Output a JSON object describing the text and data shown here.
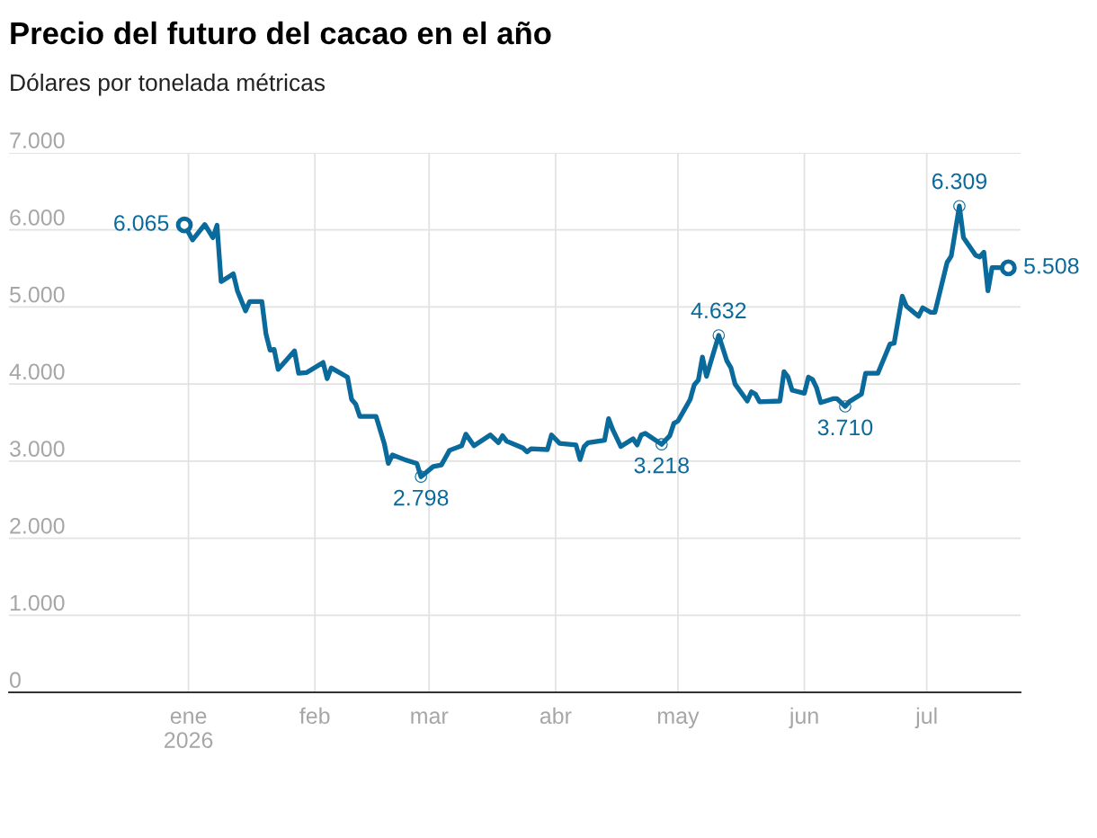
{
  "chart_data": {
    "type": "line",
    "title": "Precio del futuro del cacao en el año",
    "subtitle": "Dólares por tonelada métricas",
    "x": [
      "2025-12-31",
      "2026-01-02",
      "2026-01-05",
      "2026-01-07",
      "2026-01-08",
      "2026-01-09",
      "2026-01-12",
      "2026-01-13",
      "2026-01-15",
      "2026-01-16",
      "2026-01-19",
      "2026-01-20",
      "2026-01-21",
      "2026-01-22",
      "2026-01-23",
      "2026-01-27",
      "2026-01-28",
      "2026-01-30",
      "2026-02-03",
      "2026-02-04",
      "2026-02-05",
      "2026-02-09",
      "2026-02-10",
      "2026-02-11",
      "2026-02-12",
      "2026-02-16",
      "2026-02-18",
      "2026-02-19",
      "2026-02-20",
      "2026-02-23",
      "2026-02-26",
      "2026-02-27",
      "2026-03-02",
      "2026-03-04",
      "2026-03-06",
      "2026-03-09",
      "2026-03-10",
      "2026-03-12",
      "2026-03-16",
      "2026-03-18",
      "2026-03-19",
      "2026-03-20",
      "2026-03-24",
      "2026-03-25",
      "2026-03-26",
      "2026-03-30",
      "2026-03-31",
      "2026-04-02",
      "2026-04-06",
      "2026-04-07",
      "2026-04-08",
      "2026-04-09",
      "2026-04-13",
      "2026-04-14",
      "2026-04-15",
      "2026-04-17",
      "2026-04-20",
      "2026-04-21",
      "2026-04-22",
      "2026-04-23",
      "2026-04-27",
      "2026-04-29",
      "2026-04-30",
      "2026-05-01",
      "2026-05-04",
      "2026-05-05",
      "2026-05-06",
      "2026-05-07",
      "2026-05-08",
      "2026-05-11",
      "2026-05-13",
      "2026-05-14",
      "2026-05-15",
      "2026-05-18",
      "2026-05-19",
      "2026-05-20",
      "2026-05-21",
      "2026-05-26",
      "2026-05-27",
      "2026-05-28",
      "2026-05-29",
      "2026-06-01",
      "2026-06-02",
      "2026-06-03",
      "2026-06-04",
      "2026-06-05",
      "2026-06-08",
      "2026-06-09",
      "2026-06-11",
      "2026-06-12",
      "2026-06-15",
      "2026-06-16",
      "2026-06-19",
      "2026-06-22",
      "2026-06-23",
      "2026-06-25",
      "2026-06-26",
      "2026-06-29",
      "2026-06-30",
      "2026-07-02",
      "2026-07-03",
      "2026-07-06",
      "2026-07-07",
      "2026-07-09",
      "2026-07-10",
      "2026-07-13",
      "2026-07-14",
      "2026-07-15",
      "2026-07-16",
      "2026-07-17",
      "2026-07-18",
      "2026-07-21"
    ],
    "series": [
      {
        "color": "#0a6a9b",
        "values": [
          6065,
          5870,
          6070,
          5900,
          6060,
          5330,
          5430,
          5210,
          4950,
          5070,
          5070,
          4650,
          4440,
          4450,
          4190,
          4430,
          4140,
          4150,
          4280,
          4070,
          4210,
          4090,
          3800,
          3740,
          3580,
          3580,
          3230,
          2970,
          3080,
          3020,
          2970,
          2798,
          2930,
          2950,
          3140,
          3200,
          3350,
          3200,
          3340,
          3240,
          3330,
          3260,
          3170,
          3120,
          3160,
          3150,
          3340,
          3230,
          3210,
          3020,
          3190,
          3240,
          3270,
          3550,
          3410,
          3190,
          3290,
          3210,
          3340,
          3360,
          3218,
          3330,
          3490,
          3520,
          3800,
          3990,
          4050,
          4350,
          4100,
          4632,
          4300,
          4210,
          4000,
          3780,
          3900,
          3870,
          3770,
          3780,
          4160,
          4090,
          3920,
          3880,
          4090,
          4060,
          3950,
          3760,
          3810,
          3810,
          3710,
          3770,
          3870,
          4140,
          4140,
          4520,
          4530,
          5140,
          5010,
          4880,
          4990,
          4930,
          4930,
          5580,
          5660,
          6309,
          5900,
          5670,
          5650,
          5710,
          5210,
          5510,
          5510,
          5508
        ]
      }
    ],
    "xlim": [
      "2025-11-18",
      "2026-07-24"
    ],
    "xticks": [
      {
        "value": "2026-01-01",
        "label": "ene\n2026"
      },
      {
        "value": "2026-02-01",
        "label": "feb"
      },
      {
        "value": "2026-03-01",
        "label": "mar"
      },
      {
        "value": "2026-04-01",
        "label": "abr"
      },
      {
        "value": "2026-05-01",
        "label": "may"
      },
      {
        "value": "2026-06-01",
        "label": "jun"
      },
      {
        "value": "2026-07-01",
        "label": "jul"
      }
    ],
    "ylim": [
      0,
      7000
    ],
    "yticks": [
      {
        "value": 0,
        "label": "0"
      },
      {
        "value": 1000,
        "label": "1.000"
      },
      {
        "value": 2000,
        "label": "2.000"
      },
      {
        "value": 3000,
        "label": "3.000"
      },
      {
        "value": 4000,
        "label": "4.000"
      },
      {
        "value": 5000,
        "label": "5.000"
      },
      {
        "value": 6000,
        "label": "6.000"
      },
      {
        "value": 7000,
        "label": "7.000"
      }
    ],
    "grid": true,
    "legend": false,
    "marker": "none",
    "line_style": "solid",
    "annotations": [
      {
        "text": "6.065",
        "x": "2025-12-31",
        "y": 6065
      },
      {
        "text": "2.798",
        "x": "2026-02-27",
        "y": 2798
      },
      {
        "text": "3.218",
        "x": "2026-04-27",
        "y": 3218
      },
      {
        "text": "4.632",
        "x": "2026-05-11",
        "y": 4632
      },
      {
        "text": "3.710",
        "x": "2026-06-11",
        "y": 3710
      },
      {
        "text": "6.309",
        "x": "2026-07-09",
        "y": 6309
      },
      {
        "text": "5.508",
        "x": "2026-07-21",
        "y": 5508
      }
    ]
  }
}
